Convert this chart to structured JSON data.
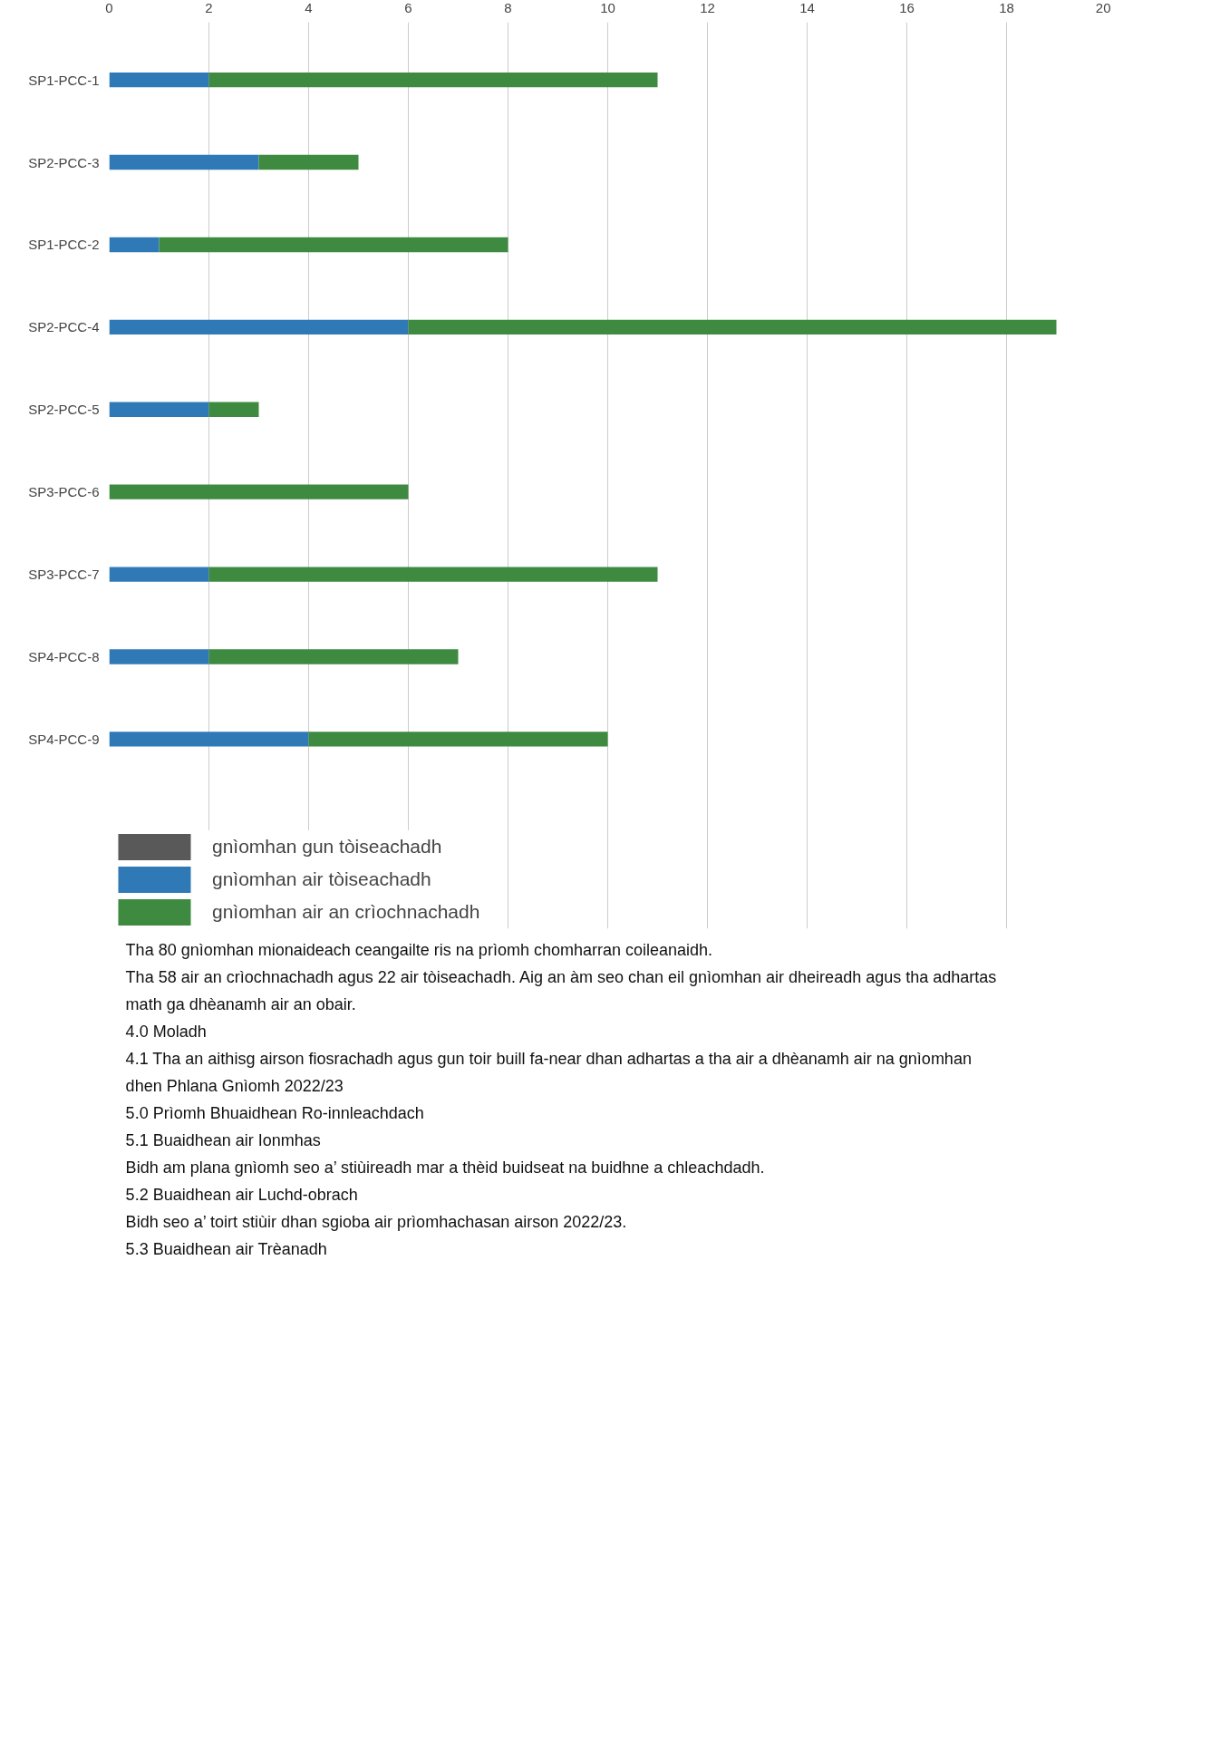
{
  "chart_data": {
    "type": "bar",
    "orientation": "horizontal",
    "stacked": true,
    "categories": [
      "SP1-PCC-1",
      "SP2-PCC-3",
      "SP1-PCC-2",
      "SP2-PCC-4",
      "SP2-PCC-5",
      "SP3-PCC-6",
      "SP3-PCC-7",
      "SP4-PCC-8",
      "SP4-PCC-9"
    ],
    "series": [
      {
        "name": "gnìomhan gun tòiseachadh",
        "color": "#595959",
        "values": [
          0,
          0,
          0,
          0,
          0,
          0,
          0,
          0,
          0
        ]
      },
      {
        "name": "gnìomhan air tòiseachadh",
        "color": "#2f7ab6",
        "values": [
          2,
          3,
          1,
          6,
          2,
          0,
          2,
          2,
          4
        ]
      },
      {
        "name": "gnìomhan air an crìochnachadh",
        "color": "#3d8a40",
        "values": [
          9,
          2,
          7,
          13,
          1,
          6,
          9,
          5,
          6
        ]
      }
    ],
    "xlim": [
      0,
      20
    ],
    "xticks": [
      0,
      2,
      4,
      6,
      8,
      10,
      12,
      14,
      16,
      18,
      20
    ],
    "grid": "x",
    "legend": "bottom",
    "annotations": [
      "Tha 80 gnìomhan mionaideach ceangailte ris na prìomh chomharran coileanaidh.",
      "Tha 58 air an crìochnachadh agus 22 air tòiseachadh.  Aig an àm seo chan eil gnìomhan air dheireadh agus tha adhartas math ga dhèanamh air an obair.",
      "4.0 Moladh",
      "4.1 Tha an aithisg airson fiosrachadh agus gun toir buill fa-near dhan adhartas a tha air a dhèanamh air na gnìomhan dhen Phlana Gnìomh 2022/23",
      "5.0 Prìomh Bhuaidhean Ro-innleachdach",
      "5.1 Buaidhean air Ionmhas",
      "Bidh am plana gnìomh seo a’ stiùireadh mar a thèid buidseat na buidhne a chleachdadh.",
      "5.2 Buaidhean air Luchd-obrach",
      "Bidh seo a’ toirt stiùir dhan sgioba air prìomhachasan airson 2022/23.",
      "5.3 Buaidhean air Trèanadh"
    ]
  }
}
